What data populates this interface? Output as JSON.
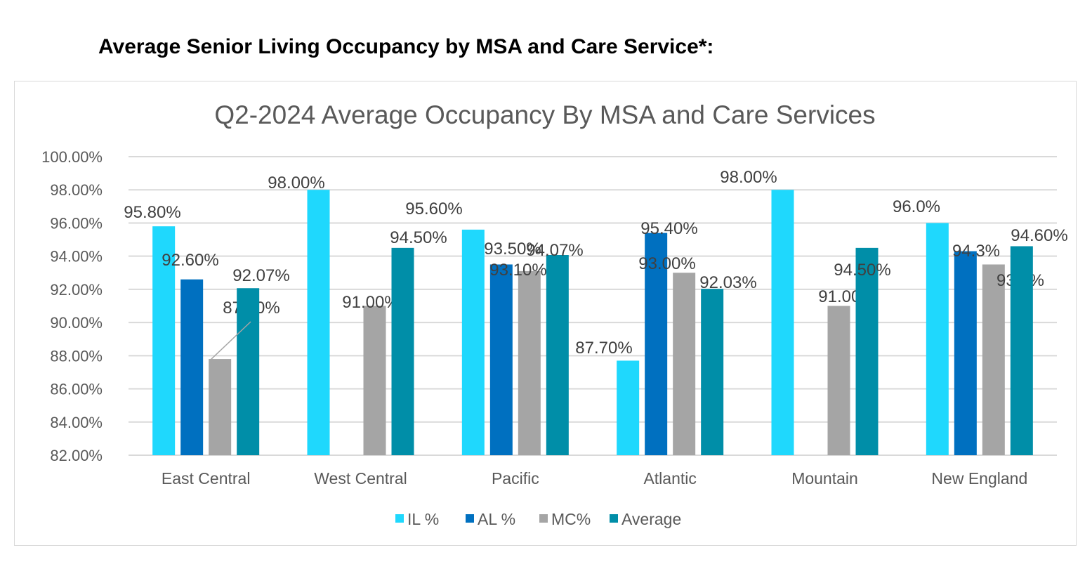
{
  "heading": "Average Senior Living Occupancy by MSA and Care Service*:",
  "chart_data": {
    "type": "bar",
    "title": "Q2-2024 Average Occupancy By MSA and Care Services",
    "xlabel": "",
    "ylabel": "",
    "ylim": [
      82,
      100
    ],
    "yticks": [
      "82.00%",
      "84.00%",
      "86.00%",
      "88.00%",
      "90.00%",
      "92.00%",
      "94.00%",
      "96.00%",
      "98.00%",
      "100.00%"
    ],
    "grid": true,
    "legend_position": "bottom",
    "categories": [
      "East Central",
      "West Central",
      "Pacific",
      "Atlantic",
      "Mountain",
      "New England"
    ],
    "series": [
      {
        "name": "IL %",
        "color": "#1fd8fd",
        "values": [
          95.8,
          98.0,
          95.6,
          87.7,
          98.0,
          96.0
        ],
        "labels": [
          "95.80%",
          "98.00%",
          "95.60%",
          "87.70%",
          "98.00%",
          "96.0%"
        ]
      },
      {
        "name": "AL %",
        "color": "#0070c0",
        "values": [
          92.6,
          null,
          93.5,
          95.4,
          null,
          94.3
        ],
        "labels": [
          "92.60%",
          null,
          "93.50%",
          "95.40%",
          null,
          "94.3%"
        ]
      },
      {
        "name": "MC%",
        "color": "#a5a5a5",
        "values": [
          87.8,
          91.0,
          93.1,
          93.0,
          91.0,
          93.5
        ],
        "labels": [
          "87.80%",
          "91.00%",
          "93.10%",
          "93.00%",
          "91.00%",
          "93.5%"
        ]
      },
      {
        "name": "Average",
        "color": "#008ea8",
        "values": [
          92.07,
          94.5,
          94.07,
          92.03,
          94.5,
          94.6
        ],
        "labels": [
          "92.07%",
          "94.50%",
          "94.07%",
          "92.03%",
          "94.50%",
          "94.60%"
        ]
      }
    ]
  }
}
